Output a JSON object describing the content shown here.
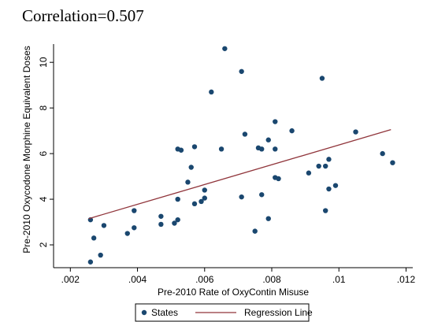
{
  "chart_data": {
    "type": "scatter",
    "title": "Correlation=0.507",
    "x_label": "Pre-2010 Rate of OxyContin Misuse",
    "y_label": "Pre-2010 Oxycodone Morphine Equivalent Doses",
    "xlim": [
      0.0015,
      0.0122
    ],
    "ylim": [
      1,
      10.8
    ],
    "xticks": [
      {
        "value": 0.002,
        "label": ".002"
      },
      {
        "value": 0.004,
        "label": ".004"
      },
      {
        "value": 0.006,
        "label": ".006"
      },
      {
        "value": 0.008,
        "label": ".008"
      },
      {
        "value": 0.01,
        "label": ".01"
      },
      {
        "value": 0.012,
        "label": ".012"
      }
    ],
    "yticks": [
      2,
      4,
      6,
      8,
      10
    ],
    "legend": "bottom",
    "series": [
      {
        "name": "States",
        "type": "scatter",
        "color": "#1a476f",
        "x": [
          0.0026,
          0.0026,
          0.0027,
          0.0029,
          0.003,
          0.0037,
          0.0039,
          0.0039,
          0.0047,
          0.0047,
          0.0051,
          0.0052,
          0.0052,
          0.0052,
          0.0053,
          0.0055,
          0.0056,
          0.0057,
          0.0057,
          0.0059,
          0.006,
          0.006,
          0.0062,
          0.0065,
          0.0066,
          0.0071,
          0.0071,
          0.0072,
          0.0075,
          0.0076,
          0.0077,
          0.0077,
          0.0079,
          0.0079,
          0.0081,
          0.0081,
          0.0081,
          0.0082,
          0.0086,
          0.0091,
          0.0094,
          0.0095,
          0.0096,
          0.0096,
          0.0097,
          0.0097,
          0.0099,
          0.0105,
          0.0113,
          0.0116
        ],
        "values": [
          3.1,
          1.25,
          2.3,
          1.55,
          2.85,
          2.5,
          2.75,
          3.5,
          2.9,
          3.25,
          2.95,
          3.1,
          4.0,
          6.2,
          6.15,
          4.75,
          5.4,
          6.3,
          3.8,
          3.9,
          4.05,
          4.4,
          8.7,
          6.2,
          10.6,
          4.1,
          9.6,
          6.85,
          2.6,
          6.25,
          6.2,
          4.2,
          3.15,
          6.6,
          7.4,
          6.2,
          4.95,
          4.9,
          7.0,
          5.15,
          5.45,
          9.3,
          5.45,
          3.5,
          5.75,
          4.45,
          4.6,
          6.95,
          6.0,
          5.6
        ]
      },
      {
        "name": "Regression Line",
        "type": "line",
        "color": "#90353b",
        "x": [
          0.00255,
          0.01155
        ],
        "values": [
          3.15,
          7.05
        ]
      }
    ]
  }
}
